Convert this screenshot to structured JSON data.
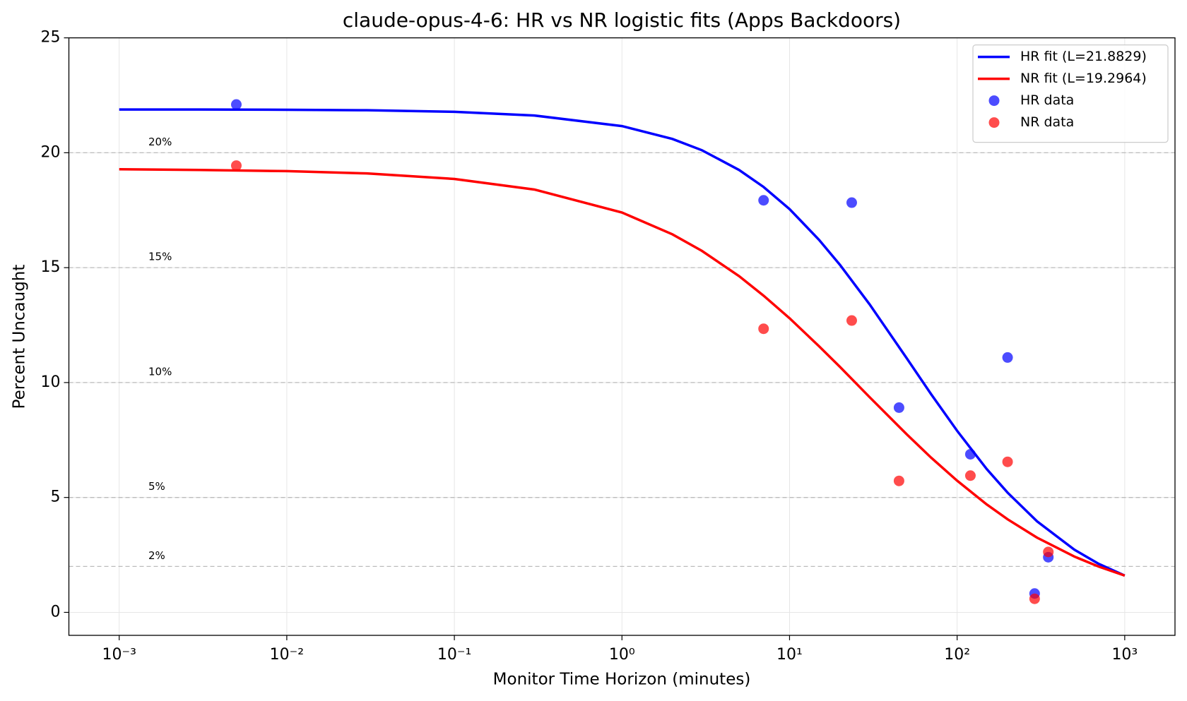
{
  "chart_data": {
    "type": "line",
    "title": "claude-opus-4-6: HR vs NR logistic fits (Apps Backdoors)",
    "x_label": "Monitor Time Horizon (minutes)",
    "y_label": "Percent Uncaught",
    "x_scale": "log",
    "xlim": [
      0.000501,
      1995
    ],
    "ylim": [
      -1,
      25
    ],
    "xticks": [
      {
        "value": 0.001,
        "label": "10⁻³"
      },
      {
        "value": 0.01,
        "label": "10⁻²"
      },
      {
        "value": 0.1,
        "label": "10⁻¹"
      },
      {
        "value": 1,
        "label": "10⁰"
      },
      {
        "value": 10,
        "label": "10¹"
      },
      {
        "value": 100,
        "label": "10²"
      },
      {
        "value": 1000,
        "label": "10³"
      }
    ],
    "yticks": [
      0,
      5,
      10,
      15,
      20,
      25
    ],
    "grid": true,
    "legend": "upper right",
    "reference_lines": [
      {
        "value": 20,
        "label": "20%"
      },
      {
        "value": 15,
        "label": "15%"
      },
      {
        "value": 10,
        "label": "10%"
      },
      {
        "value": 5,
        "label": "5%"
      },
      {
        "value": 2,
        "label": "2%"
      }
    ],
    "series": [
      {
        "name": "HR fit (L=21.8829)",
        "type": "line",
        "color": "#0000ff",
        "x": [
          0.001,
          0.003,
          0.01,
          0.03,
          0.1,
          0.3,
          1,
          2,
          3,
          5,
          7,
          10,
          15,
          20,
          30,
          50,
          70,
          100,
          150,
          200,
          300,
          500,
          700,
          1000
        ],
        "values": [
          21.88,
          21.88,
          21.87,
          21.85,
          21.78,
          21.62,
          21.16,
          20.6,
          20.11,
          19.25,
          18.51,
          17.55,
          16.21,
          15.12,
          13.41,
          11.06,
          9.49,
          7.9,
          6.24,
          5.21,
          3.96,
          2.73,
          2.11,
          1.6
        ]
      },
      {
        "name": "NR fit (L=19.2964)",
        "type": "line",
        "color": "#ff0000",
        "x": [
          0.001,
          0.003,
          0.01,
          0.03,
          0.1,
          0.3,
          1,
          2,
          3,
          5,
          7,
          10,
          15,
          20,
          30,
          50,
          70,
          100,
          150,
          200,
          300,
          500,
          700,
          1000
        ],
        "values": [
          19.28,
          19.25,
          19.2,
          19.1,
          18.86,
          18.4,
          17.4,
          16.45,
          15.73,
          14.63,
          13.78,
          12.8,
          11.58,
          10.68,
          9.37,
          7.75,
          6.73,
          5.73,
          4.7,
          4.05,
          3.25,
          2.43,
          1.99,
          1.6
        ]
      },
      {
        "name": "HR data",
        "type": "scatter",
        "color": "#0000ff",
        "alpha": 0.7,
        "x": [
          0.005,
          7,
          23.5,
          45,
          120,
          200,
          290,
          350
        ],
        "values": [
          22.1,
          17.93,
          17.83,
          8.91,
          6.88,
          11.09,
          0.82,
          2.4
        ]
      },
      {
        "name": "NR data",
        "type": "scatter",
        "color": "#ff0000",
        "alpha": 0.7,
        "x": [
          0.005,
          7,
          23.5,
          45,
          120,
          200,
          290,
          350
        ],
        "values": [
          19.44,
          12.34,
          12.7,
          5.72,
          5.95,
          6.55,
          0.59,
          2.63
        ]
      }
    ]
  }
}
